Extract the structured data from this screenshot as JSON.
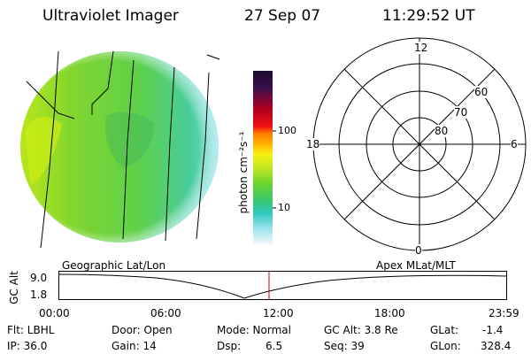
{
  "header": {
    "instrument": "Ultraviolet Imager",
    "date": "27 Sep 07",
    "time": "11:29:52 UT"
  },
  "colorbar": {
    "unit_label": "photon cm⁻²s⁻¹",
    "tick_labels": [
      "100",
      "10"
    ]
  },
  "polar_plot": {
    "lat_labels": [
      "60",
      "70",
      "80"
    ],
    "mlt_labels": {
      "top": "12",
      "left": "18",
      "right": "6",
      "bottom": "0"
    }
  },
  "orbit_strip": {
    "left_title": "Geographic Lat/Lon",
    "right_title": "Apex MLat/MLT",
    "axis_label": "GC Alt",
    "y_ticks": [
      "9.0",
      "1.8"
    ],
    "x_ticks": [
      "00:00",
      "06:00",
      "12:00",
      "18:00",
      "23:59"
    ],
    "colors": {
      "current_time_marker": "#cc0000"
    }
  },
  "status": {
    "filter": "Flt: LBHL",
    "ip": "IP: 36.0",
    "door": "Door: Open",
    "gain": "Gain: 14",
    "mode": "Mode: Normal",
    "dsp_label": "Dsp:",
    "dsp_value": "6.5",
    "gc_alt": "GC Alt: 3.8 Re",
    "seq": "Seq: 39",
    "glat_label": "GLat:",
    "glat_value": "-1.4",
    "glon_label": "GLon:",
    "glon_value": "328.4"
  }
}
